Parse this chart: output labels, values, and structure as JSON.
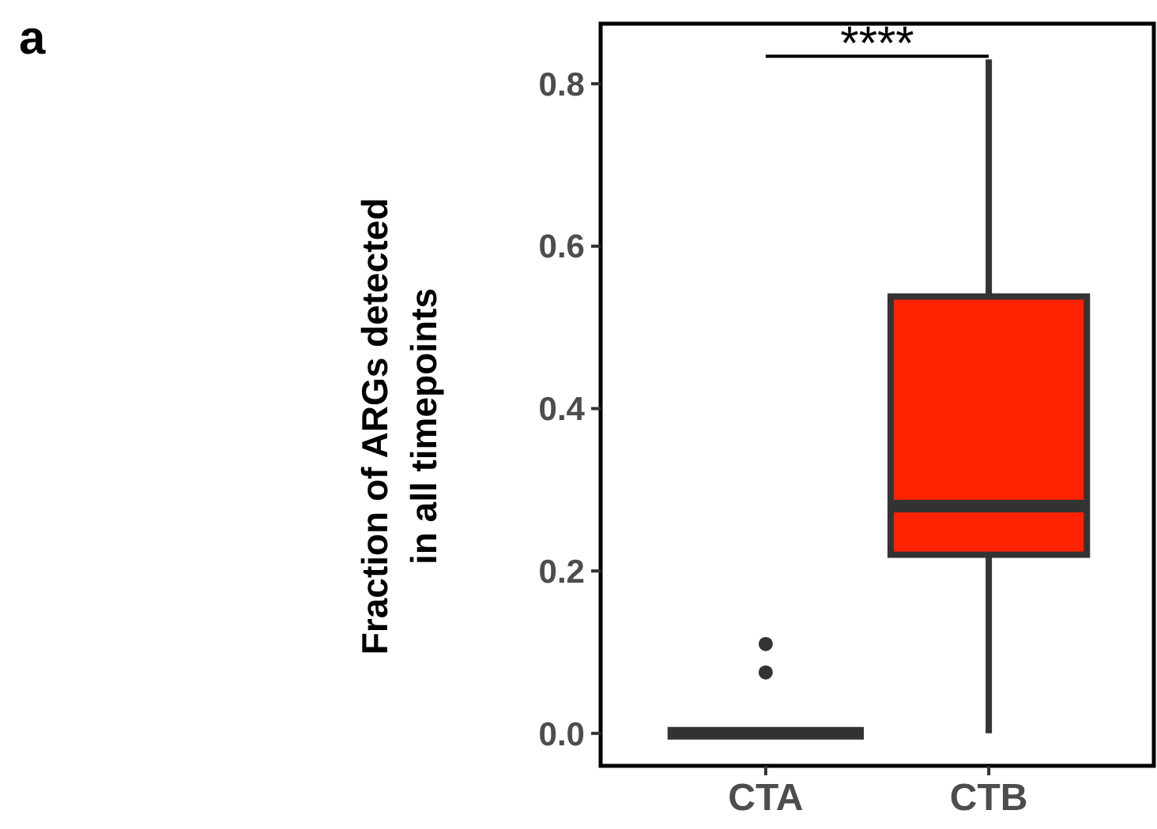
{
  "chart_data": {
    "type": "box",
    "title": "a",
    "ylabel": "Fraction of ARGs detected\nin all timepoints",
    "categories": [
      "CTA",
      "CTB"
    ],
    "boxes": [
      {
        "low": 0,
        "q1": 0,
        "median": 0,
        "q3": 0,
        "high": 0,
        "outliers": [
          0.11,
          0.075
        ]
      },
      {
        "low": 0,
        "q1": 0.22,
        "median": 0.28,
        "q3": 0.538,
        "high": 0.83
      }
    ],
    "colors": [
      "#333333",
      "#ff2200"
    ],
    "ylim": [
      -0.04,
      0.874
    ],
    "yticks": [
      {
        "value": 0,
        "label": "0.0"
      },
      {
        "value": 0.2,
        "label": "0.2"
      },
      {
        "value": 0.4,
        "label": "0.4"
      },
      {
        "value": 0.6,
        "label": "0.6"
      },
      {
        "value": 0.8,
        "label": "0.8"
      }
    ],
    "grid": false,
    "annotations": [
      "****"
    ]
  }
}
